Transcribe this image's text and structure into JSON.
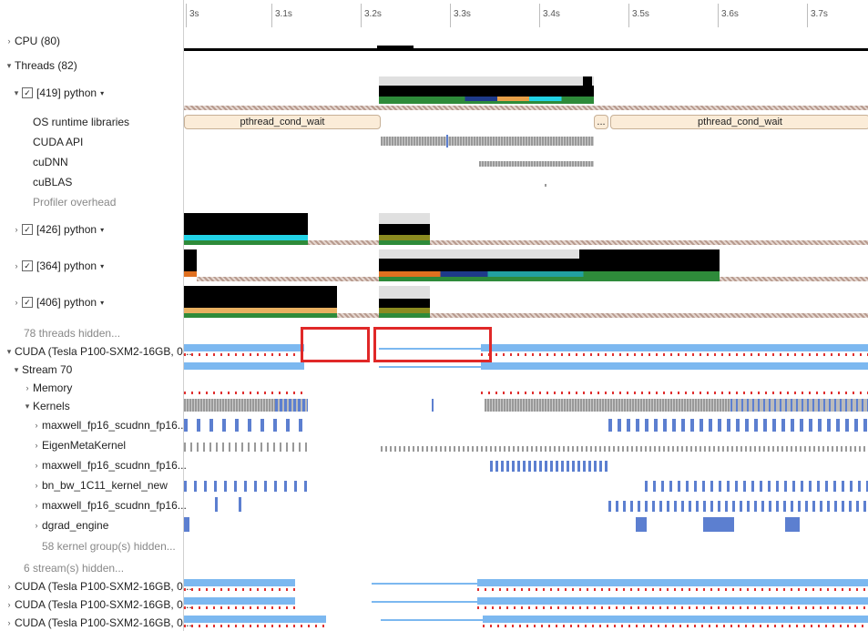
{
  "timeline": {
    "ticks": [
      "3s",
      "3.1s",
      "3.2s",
      "3.3s",
      "3.4s",
      "3.5s",
      "3.6s",
      "3.7s"
    ]
  },
  "rows": {
    "cpu": "CPU (80)",
    "threads": "Threads (82)",
    "t419": "[419] python",
    "os_runtime": "OS runtime libraries",
    "cuda_api": "CUDA API",
    "cudnn": "cuDNN",
    "cublas": "cuBLAS",
    "profiler": "Profiler overhead",
    "t426": "[426] python",
    "t364": "[364] python",
    "t406": "[406] python",
    "threads_hidden": "78 threads hidden...",
    "cuda_main": "CUDA (Tesla P100-SXM2-16GB, 0...",
    "stream70": "Stream 70",
    "memory": "Memory",
    "kernels": "Kernels",
    "k1": "maxwell_fp16_scudnn_fp16...",
    "k2": "EigenMetaKernel",
    "k3": "maxwell_fp16_scudnn_fp16...",
    "k4": "bn_bw_1C11_kernel_new",
    "k5": "maxwell_fp16_scudnn_fp16...",
    "k6": "dgrad_engine",
    "kernel_groups_hidden": "58 kernel group(s) hidden...",
    "streams_hidden": "6 stream(s) hidden...",
    "cuda2": "CUDA (Tesla P100-SXM2-16GB, 0...",
    "cuda3": "CUDA (Tesla P100-SXM2-16GB, 0...",
    "cuda4": "CUDA (Tesla P100-SXM2-16GB, 0..."
  },
  "events": {
    "wait_left": "pthread_cond_wait",
    "wait_right": "pthread_cond_wait",
    "ellipsis": "..."
  },
  "icons": {
    "expanded": "▾",
    "collapsed": "›",
    "check": "✓",
    "menu": "▾"
  },
  "colors": {
    "highlight": "#e02828",
    "cuda_blue": "#7cb8f0",
    "kernel_blue": "#5c7fd0",
    "green": "#2e8b3a",
    "cyan": "#22d3e6",
    "orange": "#e8a048"
  }
}
